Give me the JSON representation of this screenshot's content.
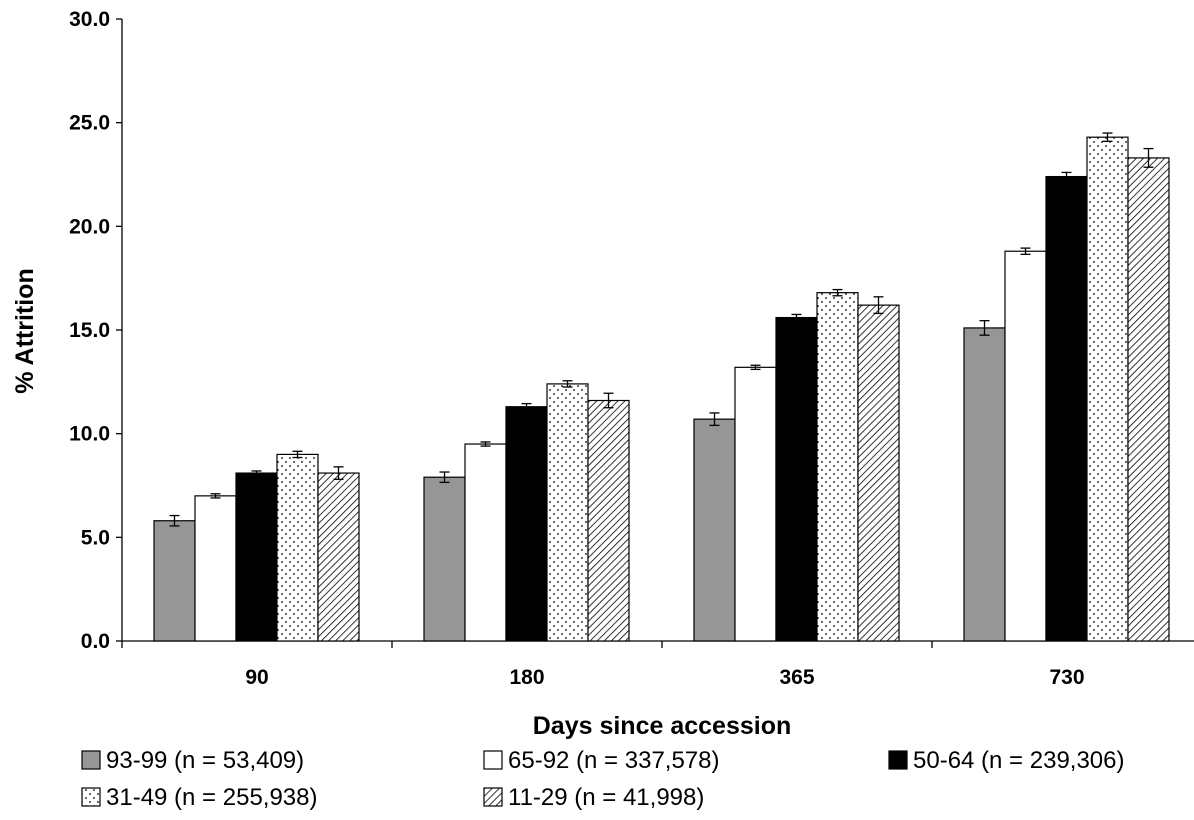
{
  "chart_data": {
    "type": "bar",
    "title": "",
    "xlabel": "Days since accession",
    "ylabel": "% Attrition",
    "ylim": [
      0,
      30
    ],
    "yticks": [
      "0.0",
      "5.0",
      "10.0",
      "15.0",
      "20.0",
      "25.0",
      "30.0"
    ],
    "categories": [
      "90",
      "180",
      "365",
      "730"
    ],
    "grid": false,
    "legend_position": "bottom",
    "series": [
      {
        "name": "93-99 (n = 53,409)",
        "values": [
          5.8,
          7.9,
          10.7,
          15.1
        ],
        "error": [
          0.25,
          0.25,
          0.3,
          0.35
        ],
        "color": "#969696",
        "pattern": "solid-gray"
      },
      {
        "name": "65-92 (n = 337,578)",
        "values": [
          7.0,
          9.5,
          13.2,
          18.8
        ],
        "error": [
          0.1,
          0.1,
          0.1,
          0.15
        ],
        "color": "#ffffff",
        "pattern": "white"
      },
      {
        "name": "50-64 (n = 239,306)",
        "values": [
          8.1,
          11.3,
          15.6,
          22.4
        ],
        "error": [
          0.1,
          0.15,
          0.15,
          0.2
        ],
        "color": "#000000",
        "pattern": "solid-black"
      },
      {
        "name": "31-49 (n = 255,938)",
        "values": [
          9.0,
          12.4,
          16.8,
          24.3
        ],
        "error": [
          0.15,
          0.15,
          0.15,
          0.2
        ],
        "color": "#ffffff",
        "pattern": "dots"
      },
      {
        "name": "11-29 (n = 41,998)",
        "values": [
          8.1,
          11.6,
          16.2,
          23.3
        ],
        "error": [
          0.3,
          0.35,
          0.4,
          0.45
        ],
        "color": "#ffffff",
        "pattern": "diagonal-hatch"
      }
    ]
  }
}
